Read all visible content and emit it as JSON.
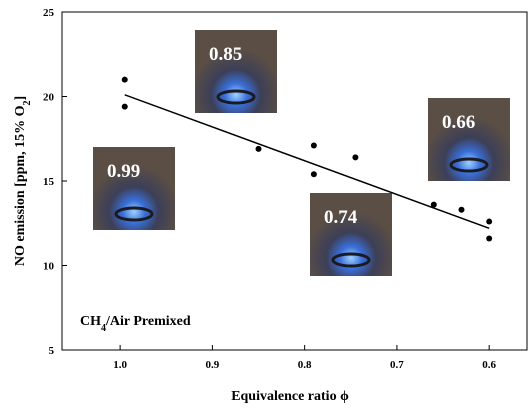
{
  "chart_data": {
    "type": "scatter",
    "xlabel": "Equivalence ratio  ϕ",
    "ylabel_parts": [
      "NO emission [ppm, 15% O",
      "2",
      "]"
    ],
    "note_parts": [
      "CH",
      "4",
      "/Air Premixed"
    ],
    "x": [
      0.995,
      0.995,
      0.85,
      0.79,
      0.79,
      0.745,
      0.66,
      0.63,
      0.6,
      0.6
    ],
    "values": [
      21.0,
      19.4,
      16.9,
      17.1,
      15.4,
      16.4,
      13.6,
      13.3,
      12.6,
      11.6
    ],
    "color": "#000000",
    "trend_line": {
      "x": [
        0.995,
        0.6
      ],
      "values": [
        20.1,
        12.2
      ],
      "color": "#000000"
    },
    "annotations": [
      "0.99",
      "0.85",
      "0.74",
      "0.66"
    ],
    "xlim": [
      1.063,
      0.559
    ],
    "ylim": [
      5,
      25
    ],
    "xticks": [
      {
        "value": 1,
        "label": "1.0"
      },
      0.9,
      0.8,
      0.7,
      0.6
    ],
    "yticks": [
      5,
      10,
      15,
      20,
      25
    ]
  }
}
